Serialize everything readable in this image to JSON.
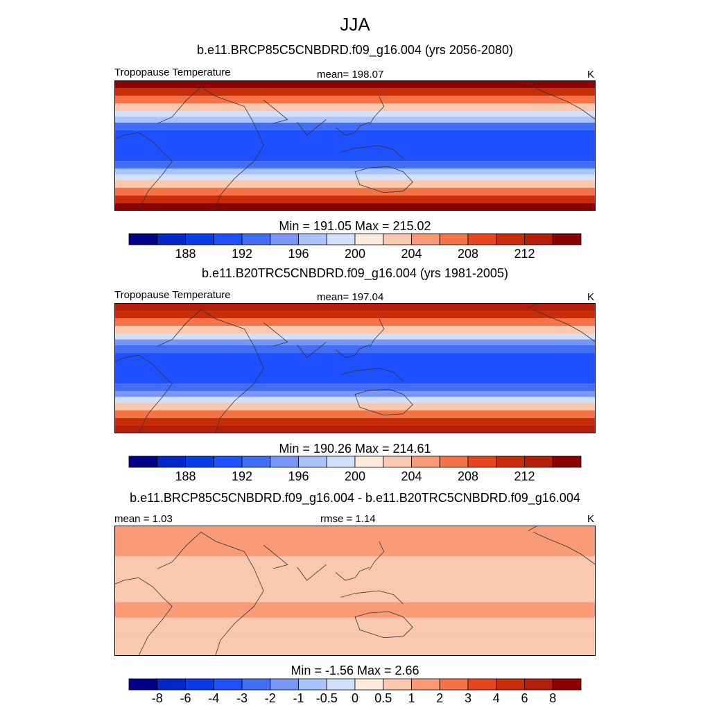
{
  "figure": {
    "title": "JJA",
    "units": "K",
    "variable": "Tropopause Temperature"
  },
  "colors": {
    "abs_palette": [
      "#00008c",
      "#0028c8",
      "#0a3ce6",
      "#1e50ff",
      "#416ef5",
      "#7896f5",
      "#aac3fa",
      "#d2e1fa",
      "#ffebdc",
      "#fac8af",
      "#fa9b78",
      "#f57346",
      "#e6461e",
      "#c82d0a",
      "#b41e0a",
      "#8c0000"
    ],
    "diff_palette": [
      "#00008c",
      "#0028c8",
      "#0a3ce6",
      "#1e50ff",
      "#416ef5",
      "#7896f5",
      "#aac3fa",
      "#d2e1fa",
      "#ffebdc",
      "#fac8af",
      "#fa9b78",
      "#f57346",
      "#e6461e",
      "#c82d0a",
      "#b41e0a",
      "#8c0000"
    ]
  },
  "chart_data": [
    {
      "type": "heatmap",
      "id": "future",
      "title": "b.e11.BRCP85C5CNBDRD.f09_g16.004 (yrs 2056-2080)",
      "left_label": "Tropopause Temperature",
      "center_label": "mean= 198.07",
      "right_label": "K",
      "min_max": "Min = 191.05 Max = 215.02",
      "mean": 198.07,
      "min": 191.05,
      "max": 215.02,
      "levels": [
        "188",
        "192",
        "196",
        "200",
        "204",
        "208",
        "212"
      ],
      "bands": [
        {
          "lat_from": 30,
          "lat_to": 34,
          "value": 214
        },
        {
          "lat_from": 26,
          "lat_to": 30,
          "value": 211
        },
        {
          "lat_from": 22,
          "lat_to": 26,
          "value": 207
        },
        {
          "lat_from": 18,
          "lat_to": 22,
          "value": 203
        },
        {
          "lat_from": 15,
          "lat_to": 18,
          "value": 199
        },
        {
          "lat_from": 12,
          "lat_to": 15,
          "value": 196
        },
        {
          "lat_from": 8,
          "lat_to": 12,
          "value": 193
        },
        {
          "lat_from": -8,
          "lat_to": 8,
          "value": 191.5
        },
        {
          "lat_from": -12,
          "lat_to": -8,
          "value": 193
        },
        {
          "lat_from": -15,
          "lat_to": -12,
          "value": 196
        },
        {
          "lat_from": -18,
          "lat_to": -15,
          "value": 199
        },
        {
          "lat_from": -22,
          "lat_to": -18,
          "value": 203
        },
        {
          "lat_from": -26,
          "lat_to": -22,
          "value": 207
        },
        {
          "lat_from": -30,
          "lat_to": -26,
          "value": 211
        },
        {
          "lat_from": -34,
          "lat_to": -30,
          "value": 214
        }
      ]
    },
    {
      "type": "heatmap",
      "id": "historical",
      "title": "b.e11.B20TRC5CNBDRD.f09_g16.004 (yrs 1981-2005)",
      "left_label": "Tropopause Temperature",
      "center_label": "mean= 197.04",
      "right_label": "K",
      "min_max": "Min = 190.26 Max = 214.61",
      "mean": 197.04,
      "min": 190.26,
      "max": 214.61,
      "levels": [
        "188",
        "192",
        "196",
        "200",
        "204",
        "208",
        "212"
      ],
      "bands": [
        {
          "lat_from": 30,
          "lat_to": 34,
          "value": 213.5
        },
        {
          "lat_from": 26,
          "lat_to": 30,
          "value": 210
        },
        {
          "lat_from": 22,
          "lat_to": 26,
          "value": 206
        },
        {
          "lat_from": 18,
          "lat_to": 22,
          "value": 202
        },
        {
          "lat_from": 15,
          "lat_to": 18,
          "value": 198
        },
        {
          "lat_from": 12,
          "lat_to": 15,
          "value": 195
        },
        {
          "lat_from": 8,
          "lat_to": 12,
          "value": 192.5
        },
        {
          "lat_from": -8,
          "lat_to": 8,
          "value": 191
        },
        {
          "lat_from": -12,
          "lat_to": -8,
          "value": 192.5
        },
        {
          "lat_from": -15,
          "lat_to": -12,
          "value": 195
        },
        {
          "lat_from": -18,
          "lat_to": -15,
          "value": 198
        },
        {
          "lat_from": -22,
          "lat_to": -18,
          "value": 202
        },
        {
          "lat_from": -26,
          "lat_to": -22,
          "value": 206
        },
        {
          "lat_from": -30,
          "lat_to": -26,
          "value": 210
        },
        {
          "lat_from": -34,
          "lat_to": -30,
          "value": 213.5
        }
      ]
    },
    {
      "type": "heatmap",
      "id": "difference",
      "title": "b.e11.BRCP85C5CNBDRD.f09_g16.004 - b.e11.B20TRC5CNBDRD.f09_g16.004",
      "left_label": "mean =   1.03",
      "center_label": "rmse =   1.14",
      "right_label": "K",
      "min_max": "Min =  -1.56 Max =   2.66",
      "mean": 1.03,
      "rmse": 1.14,
      "min": -1.56,
      "max": 2.66,
      "levels": [
        "-8",
        "-6",
        "-4",
        "-3",
        "-2",
        "-1",
        "-0.5",
        "0",
        "0.5",
        "1",
        "2",
        "3",
        "4",
        "6",
        "8"
      ],
      "bands": [
        {
          "lat_from": 26,
          "lat_to": 34,
          "value": 1.5
        },
        {
          "lat_from": 18,
          "lat_to": 26,
          "value": 1.2
        },
        {
          "lat_from": 10,
          "lat_to": 18,
          "value": 0.8
        },
        {
          "lat_from": 2,
          "lat_to": 10,
          "value": 0.7
        },
        {
          "lat_from": -6,
          "lat_to": 2,
          "value": 0.9
        },
        {
          "lat_from": -14,
          "lat_to": -6,
          "value": 1.1
        },
        {
          "lat_from": -22,
          "lat_to": -14,
          "value": 0.9
        },
        {
          "lat_from": -34,
          "lat_to": -22,
          "value": 0.8
        }
      ]
    }
  ]
}
